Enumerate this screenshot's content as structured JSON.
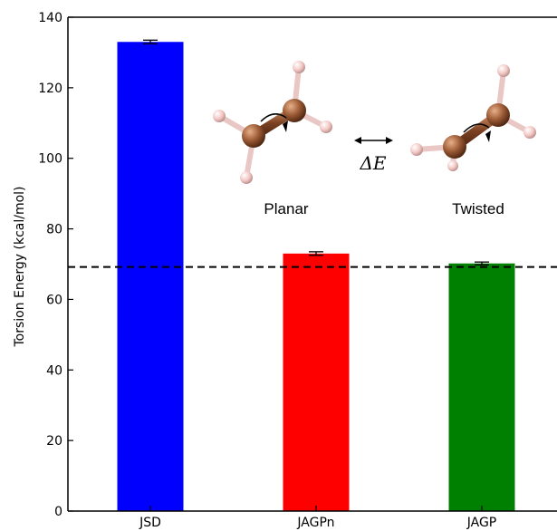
{
  "chart_data": {
    "type": "bar",
    "categories": [
      "JSD",
      "JAGPn",
      "JAGP"
    ],
    "values": [
      133.0,
      73.0,
      70.2
    ],
    "errors": [
      0.5,
      0.5,
      0.4
    ],
    "bar_colors": [
      "#0000ff",
      "#ff0000",
      "#008000"
    ],
    "ylabel": "Torsion Energy (kcal/mol)",
    "ylim": [
      0,
      140
    ],
    "yticks": [
      0,
      20,
      40,
      60,
      80,
      100,
      120,
      140
    ],
    "reference_line": 69.2,
    "reference_line_style": "dashed black",
    "grid": false
  },
  "inset": {
    "label_planar": "Planar",
    "label_twisted": "Twisted",
    "label_delta": "ΔE",
    "atom_colors": {
      "carbon": "#9b5a34",
      "hydrogen": "#f2c7c4"
    }
  }
}
